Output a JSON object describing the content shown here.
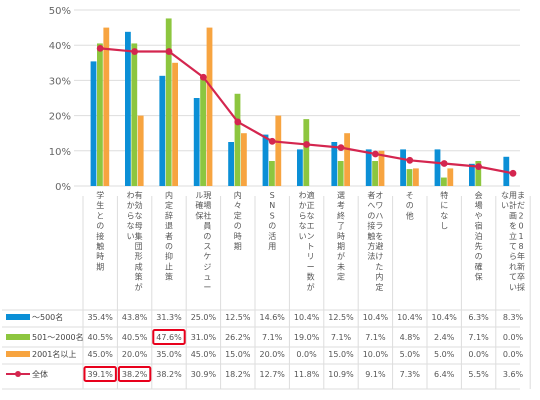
{
  "colors": {
    "s500": "#0b8fd6",
    "s501_2000": "#8dc63f",
    "s2001": "#f7a440",
    "total": "#d4264f",
    "grid": "#dddddd",
    "highlight": "#e8001c"
  },
  "chart_data": {
    "type": "bar",
    "ylim": [
      0,
      50
    ],
    "yticks": [
      "0%",
      "10%",
      "20%",
      "30%",
      "40%",
      "50%"
    ],
    "grid": true,
    "categories": [
      "学生との接触時期",
      "有効な母集団形成策がわからない",
      "内定辞退者の抑止策",
      "現場社員のスケジュール確保",
      "内々定の時期",
      "SNSの活用",
      "適正なエントリー数がわからない",
      "選考終了時期が未定",
      "オワハラを避けた内定者への接触方法",
      "その他",
      "特になし",
      "会場や宿泊先の確保",
      "まだ2018年新卒採用計画を立てられていない"
    ],
    "series": [
      {
        "name": "～500名",
        "type": "bar",
        "values": [
          35.4,
          43.8,
          31.3,
          25.0,
          12.5,
          14.6,
          10.4,
          12.5,
          10.4,
          10.4,
          10.4,
          6.3,
          8.3
        ],
        "labels": [
          "35.4%",
          "43.8%",
          "31.3%",
          "25.0%",
          "12.5%",
          "14.6%",
          "10.4%",
          "12.5%",
          "10.4%",
          "10.4%",
          "10.4%",
          "6.3%",
          "8.3%"
        ]
      },
      {
        "name": "501～2000名",
        "type": "bar",
        "values": [
          40.5,
          40.5,
          47.6,
          31.0,
          26.2,
          7.1,
          19.0,
          7.1,
          7.1,
          4.8,
          2.4,
          7.1,
          0.0
        ],
        "labels": [
          "40.5%",
          "40.5%",
          "47.6%",
          "31.0%",
          "26.2%",
          "7.1%",
          "19.0%",
          "7.1%",
          "7.1%",
          "4.8%",
          "2.4%",
          "7.1%",
          "0.0%"
        ]
      },
      {
        "name": "2001名以上",
        "type": "bar",
        "values": [
          45.0,
          20.0,
          35.0,
          45.0,
          15.0,
          20.0,
          0.0,
          15.0,
          10.0,
          5.0,
          5.0,
          0.0,
          0.0
        ],
        "labels": [
          "45.0%",
          "20.0%",
          "35.0%",
          "45.0%",
          "15.0%",
          "20.0%",
          "0.0%",
          "15.0%",
          "10.0%",
          "5.0%",
          "5.0%",
          "0.0%",
          "0.0%"
        ]
      },
      {
        "name": "全体",
        "type": "line",
        "values": [
          39.1,
          38.2,
          38.2,
          30.9,
          18.2,
          12.7,
          11.8,
          10.9,
          9.1,
          7.3,
          6.4,
          5.5,
          3.6
        ],
        "labels": [
          "39.1%",
          "38.2%",
          "38.2%",
          "30.9%",
          "18.2%",
          "12.7%",
          "11.8%",
          "10.9%",
          "9.1%",
          "7.3%",
          "6.4%",
          "5.5%",
          "3.6%"
        ]
      }
    ],
    "highlighted_cells": [
      {
        "series": "501～2000名",
        "category": "内定辞退者の抑止策"
      },
      {
        "series": "全体",
        "category": "学生との接触時期"
      },
      {
        "series": "全体",
        "category": "有効な母集団形成策がわからない"
      }
    ]
  }
}
